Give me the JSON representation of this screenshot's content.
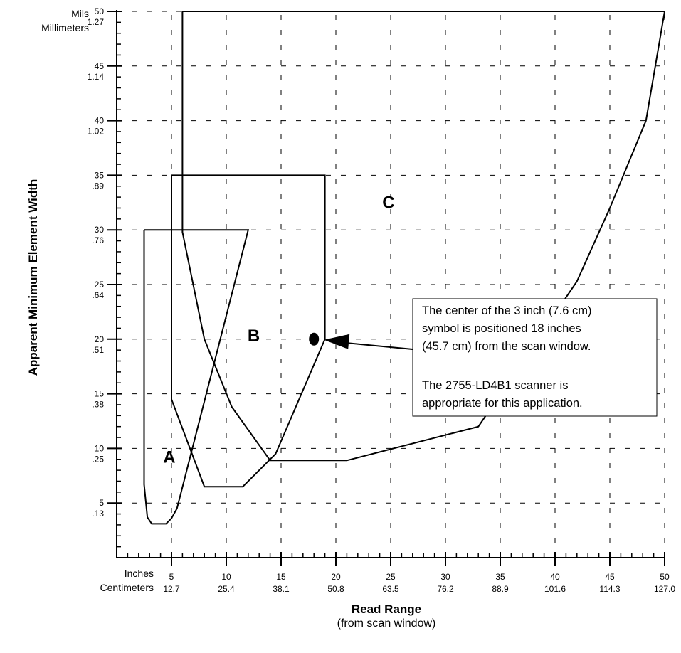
{
  "chart_data": {
    "type": "line",
    "ylabel": "Apparent Minimum Element Width",
    "xlabel": "Read Range",
    "xlabel_sub": "(from scan window)",
    "y_unit_labels": [
      "Mils",
      "Millimeters"
    ],
    "x_unit_labels": [
      "Inches",
      "Centimeters"
    ],
    "y_ticks": [
      {
        "mils": "5",
        "mm": ".13"
      },
      {
        "mils": "10",
        "mm": ".25"
      },
      {
        "mils": "15",
        "mm": ".38"
      },
      {
        "mils": "20",
        "mm": ".51"
      },
      {
        "mils": "25",
        "mm": ".64"
      },
      {
        "mils": "30",
        "mm": ".76"
      },
      {
        "mils": "35",
        "mm": ".89"
      },
      {
        "mils": "40",
        "mm": "1.02"
      },
      {
        "mils": "45",
        "mm": "1.14"
      },
      {
        "mils": "50",
        "mm": "1.27"
      }
    ],
    "x_ticks": [
      {
        "in": "5",
        "cm": "12.7"
      },
      {
        "in": "10",
        "cm": "25.4"
      },
      {
        "in": "15",
        "cm": "38.1"
      },
      {
        "in": "20",
        "cm": "50.8"
      },
      {
        "in": "25",
        "cm": "63.5"
      },
      {
        "in": "30",
        "cm": "76.2"
      },
      {
        "in": "35",
        "cm": "88.9"
      },
      {
        "in": "40",
        "cm": "101.6"
      },
      {
        "in": "45",
        "cm": "114.3"
      },
      {
        "in": "50",
        "cm": "127.0"
      }
    ],
    "xlim": [
      0,
      50
    ],
    "ylim": [
      0,
      50
    ],
    "grid": true,
    "regions": [
      {
        "name": "A",
        "label_at": [
          4.8,
          8.7
        ],
        "points": [
          [
            2.5,
            30
          ],
          [
            12,
            30
          ],
          [
            5.5,
            4.5
          ],
          [
            5,
            3.6
          ],
          [
            4.5,
            3.1
          ],
          [
            3.2,
            3.1
          ],
          [
            2.8,
            3.7
          ],
          [
            2.5,
            6.7
          ],
          [
            2.5,
            30
          ]
        ]
      },
      {
        "name": "B",
        "label_at": [
          12.5,
          19.8
        ],
        "points": [
          [
            5,
            35
          ],
          [
            19,
            35
          ],
          [
            19,
            20
          ],
          [
            14.5,
            9.5
          ],
          [
            11.5,
            6.5
          ],
          [
            8,
            6.5
          ],
          [
            5,
            14.5
          ],
          [
            5,
            35
          ]
        ]
      },
      {
        "name": "C",
        "label_at": [
          24.8,
          32
        ],
        "points": [
          [
            6,
            50
          ],
          [
            50,
            50
          ],
          [
            48.3,
            40
          ],
          [
            45,
            32
          ],
          [
            42,
            25.3
          ],
          [
            33,
            12
          ],
          [
            21,
            8.9
          ],
          [
            14,
            8.9
          ],
          [
            10.5,
            13.8
          ],
          [
            8,
            20
          ],
          [
            6,
            29.8
          ],
          [
            6,
            50
          ]
        ]
      }
    ],
    "marker": {
      "x": 18,
      "y": 20
    },
    "annotation": {
      "lines": [
        "The center of the 3 inch (7.6 cm)",
        "symbol is positioned 18 inches",
        "(45.7 cm) from the scan window.",
        "",
        "The 2755-LD4B1 scanner is",
        "appropriate for this application."
      ]
    }
  }
}
